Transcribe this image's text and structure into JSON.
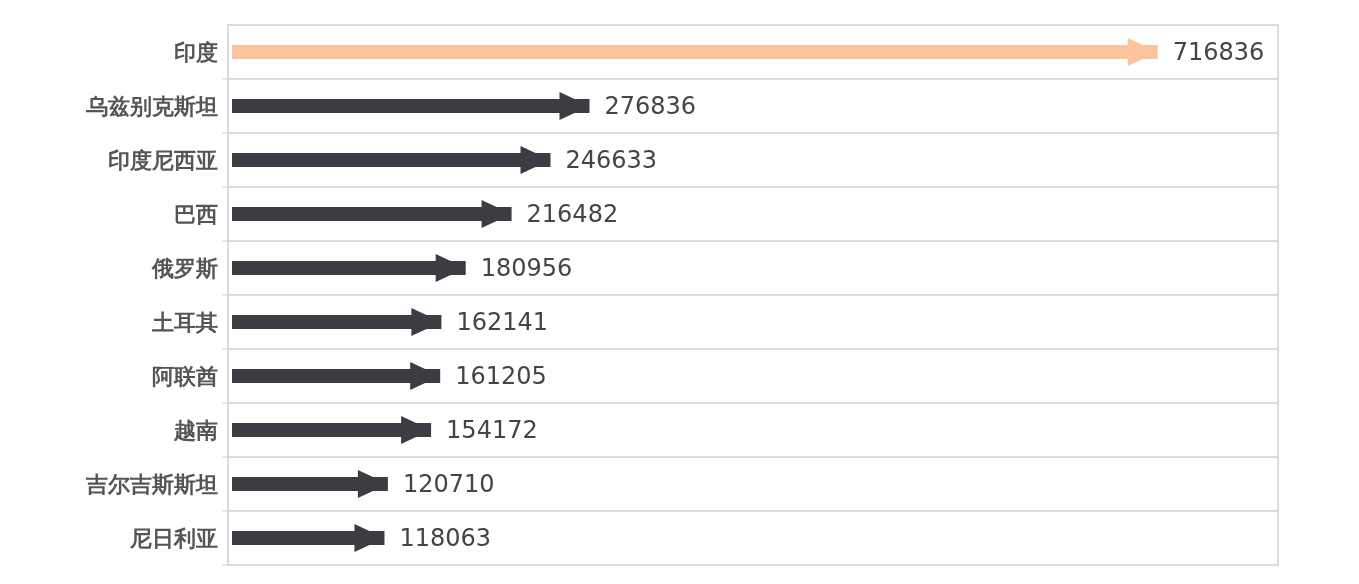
{
  "chart_data": {
    "type": "bar",
    "orientation": "horizontal",
    "categories": [
      "印度",
      "乌兹别克斯坦",
      "印度尼西亚",
      "巴西",
      "俄罗斯",
      "土耳其",
      "阿联酋",
      "越南",
      "吉尔吉斯斯坦",
      "尼日利亚"
    ],
    "values": [
      716836,
      276836,
      246633,
      216482,
      180956,
      162141,
      161205,
      154172,
      120710,
      118063
    ],
    "colors": [
      "#fcc49c",
      "#3c3c42",
      "#3c3c42",
      "#3c3c42",
      "#3c3c42",
      "#3c3c42",
      "#3c3c42",
      "#3c3c42",
      "#3c3c42",
      "#3c3c42"
    ],
    "data_labels": true,
    "grid": "y"
  }
}
